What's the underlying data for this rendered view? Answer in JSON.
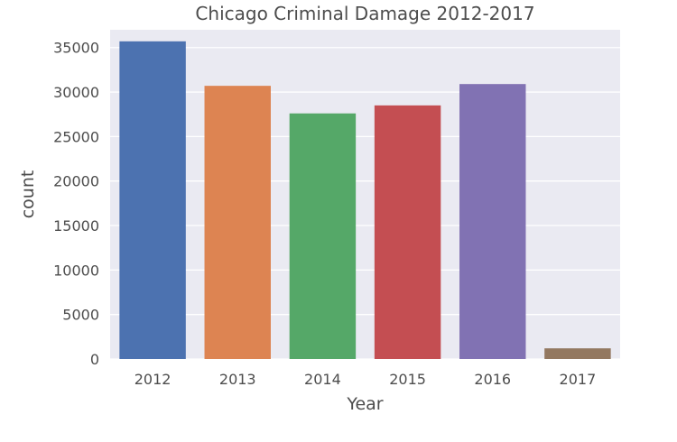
{
  "chart_data": {
    "type": "bar",
    "title": "Chicago Criminal Damage 2012-2017",
    "xlabel": "Year",
    "ylabel": "count",
    "categories": [
      "2012",
      "2013",
      "2014",
      "2015",
      "2016",
      "2017"
    ],
    "values": [
      35700,
      30700,
      27600,
      28500,
      30900,
      1200
    ],
    "ylim": [
      0,
      37000
    ],
    "yticks": [
      0,
      5000,
      10000,
      15000,
      20000,
      25000,
      30000,
      35000
    ],
    "grid": true,
    "legend": "none",
    "colors": [
      "#4c72b0",
      "#dd8452",
      "#55a868",
      "#c44e52",
      "#8172b3",
      "#937860"
    ],
    "background": "#eaeaf2",
    "grid_color": "#ffffff"
  }
}
